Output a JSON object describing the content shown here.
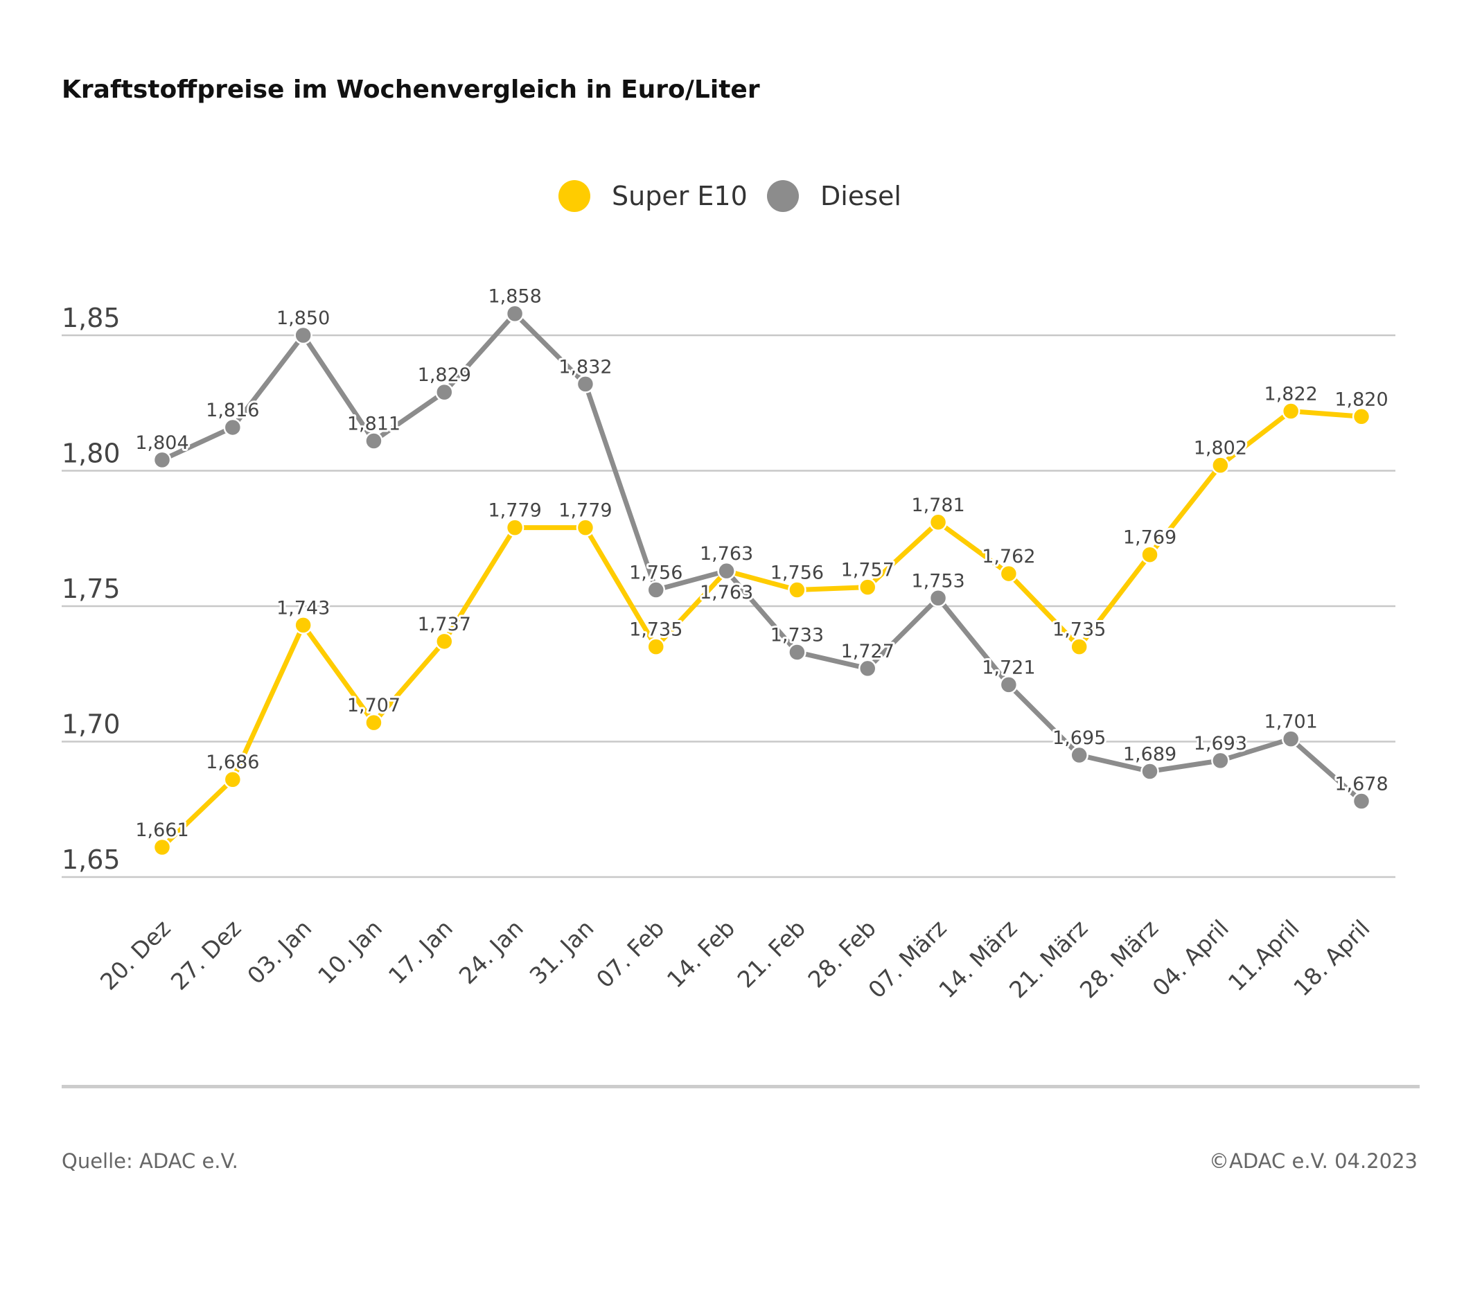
{
  "chart_data": {
    "type": "line",
    "title": "Kraftstoffpreise im Wochenvergleich in Euro/Liter",
    "categories": [
      "20. Dez",
      "27. Dez",
      "03. Jan",
      "10. Jan",
      "17. Jan",
      "24. Jan",
      "31. Jan",
      "07. Feb",
      "14. Feb",
      "21. Feb",
      "28. Feb",
      "07. März",
      "14. März",
      "21. März",
      "28. März",
      "04. April",
      "11.April",
      "18. April"
    ],
    "series": [
      {
        "name": "Super E10",
        "color": "#FFCC00",
        "values": [
          1.661,
          1.686,
          1.743,
          1.707,
          1.737,
          1.779,
          1.779,
          1.735,
          1.763,
          1.756,
          1.757,
          1.781,
          1.762,
          1.735,
          1.769,
          1.802,
          1.822,
          1.82
        ]
      },
      {
        "name": "Diesel",
        "color": "#8C8C8C",
        "values": [
          1.804,
          1.816,
          1.85,
          1.811,
          1.829,
          1.858,
          1.832,
          1.756,
          1.763,
          1.733,
          1.727,
          1.753,
          1.721,
          1.695,
          1.689,
          1.693,
          1.701,
          1.678
        ]
      }
    ],
    "yticks": [
      "1,65",
      "1,70",
      "1,75",
      "1,80",
      "1,85"
    ],
    "ylim": [
      1.65,
      1.85
    ],
    "grid": true,
    "legend_placement": "top-center",
    "xlabel": "",
    "ylabel": ""
  },
  "footer": {
    "source": "Quelle: ADAC e.V.",
    "copyright": "©ADAC e.V. 04.2023"
  }
}
